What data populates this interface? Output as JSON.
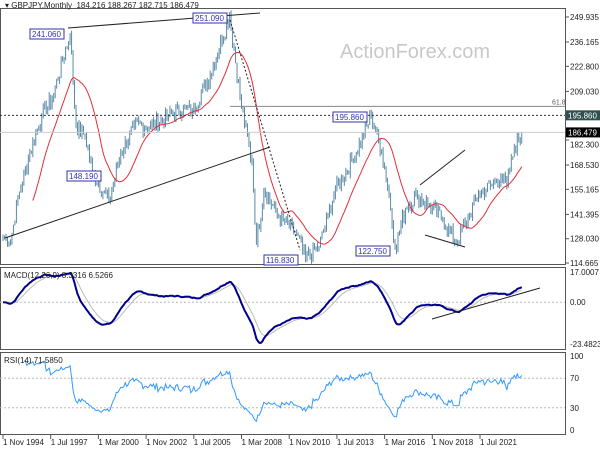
{
  "header": {
    "symbol": "GBPJPY,Monthly",
    "ohlc": "184.216 188.267 182.715 186.479"
  },
  "watermark": "ActionForex.com",
  "chart_data": [
    {
      "type": "candlestick",
      "title": "GBPJPY,Monthly",
      "ylim": [
        114.665,
        249.935
      ],
      "y_ticks": [
        "249.935",
        "236.165",
        "222.800",
        "209.030",
        "195.860",
        "182.300",
        "168.530",
        "155.165",
        "141.395",
        "128.030",
        "114.665"
      ],
      "current_price": "186.479",
      "level_line": {
        "value": "195.860",
        "label": "61.8"
      },
      "key_points": [
        [
          "1994-11",
          129
        ],
        [
          "1995-04",
          126
        ],
        [
          "1995-09",
          150
        ],
        [
          "1996-05",
          175
        ],
        [
          "1997-01",
          196
        ],
        [
          "1997-08",
          205
        ],
        [
          "1998-08",
          241.06
        ],
        [
          "1998-12",
          190
        ],
        [
          "1999-06",
          185
        ],
        [
          "1999-11",
          165
        ],
        [
          "2000-10",
          148.19
        ],
        [
          "2001-06",
          175
        ],
        [
          "2002-03",
          190
        ],
        [
          "2003-03",
          190
        ],
        [
          "2004-01",
          195
        ],
        [
          "2004-12",
          200
        ],
        [
          "2005-06",
          198
        ],
        [
          "2006-06",
          218
        ],
        [
          "2007-07",
          251.09
        ],
        [
          "2008-03",
          200
        ],
        [
          "2008-10",
          170
        ],
        [
          "2009-01",
          125
        ],
        [
          "2009-06",
          155
        ],
        [
          "2010-04",
          140
        ],
        [
          "2011-03",
          132
        ],
        [
          "2011-10",
          116.83
        ],
        [
          "2012-07",
          124
        ],
        [
          "2013-01",
          140
        ],
        [
          "2013-06",
          155
        ],
        [
          "2014-06",
          172
        ],
        [
          "2015-06",
          195.86
        ],
        [
          "2016-01",
          176
        ],
        [
          "2016-06",
          152
        ],
        [
          "2016-10",
          122.75
        ],
        [
          "2017-05",
          145
        ],
        [
          "2018-01",
          152
        ],
        [
          "2018-09",
          146
        ],
        [
          "2019-05",
          140
        ],
        [
          "2020-03",
          126
        ],
        [
          "2020-12",
          141
        ],
        [
          "2021-06",
          153
        ],
        [
          "2022-03",
          157
        ],
        [
          "2022-09",
          163
        ],
        [
          "2023-01",
          157
        ],
        [
          "2023-06",
          178
        ],
        [
          "2023-11",
          186.479
        ]
      ],
      "annotations": [
        "241.060",
        "251.090",
        "148.190",
        "116.830",
        "195.860",
        "122.750"
      ],
      "moving_average": {
        "color": "#e0303a"
      },
      "bar_color": "#5a8aa6"
    },
    {
      "type": "line",
      "title": "MACD(12,26,9) 8.3316 6.5266",
      "ylim": [
        -23.4823,
        17.0007
      ],
      "y_ticks": [
        "17.0007",
        "0.00",
        "-23.4823"
      ],
      "colors": {
        "macd": "#00008b",
        "signal": "#bbbbbb"
      }
    },
    {
      "type": "line",
      "title": "RSI(14) 71.5850",
      "ylim": [
        0,
        100
      ],
      "y_ticks": [
        "100",
        "70",
        "30",
        "0"
      ],
      "levels": [
        70,
        30
      ],
      "color": "#3399ff"
    }
  ],
  "x_ticks": [
    "1 Nov 1994",
    "1 Jul 1997",
    "1 Mar 2000",
    "1 Nov 2002",
    "1 Jul 2005",
    "1 Mar 2008",
    "1 Nov 2010",
    "1 Jul 2013",
    "1 Mar 2016",
    "1 Nov 2018",
    "1 Jul 2021"
  ]
}
